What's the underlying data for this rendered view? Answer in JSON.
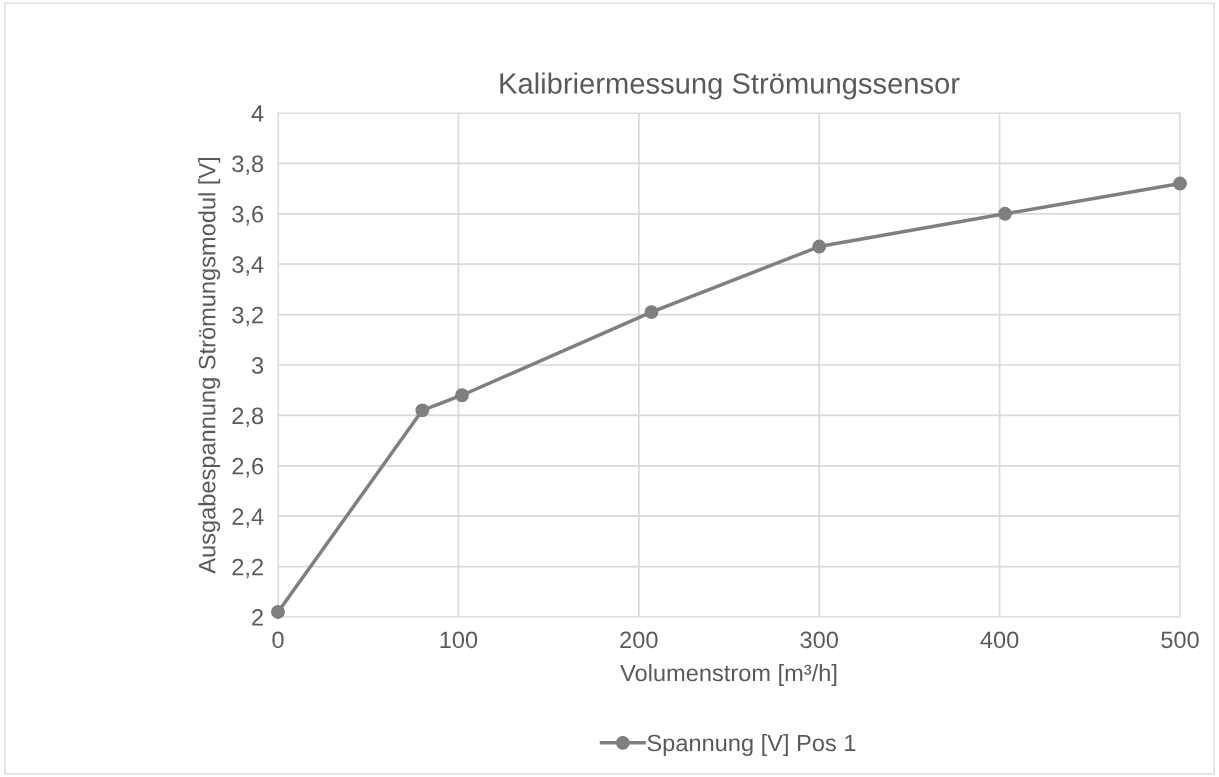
{
  "chart_data": {
    "type": "line",
    "title": "Kalibriermessung Strömungssensor",
    "xlabel": "Volumenstrom [m³/h]",
    "ylabel": "Ausgabespannung Strömungsmodul [V]",
    "x": [
      0,
      80,
      102,
      207,
      300,
      403,
      500
    ],
    "series": [
      {
        "name": "Spannung [V] Pos 1",
        "color": "#7f7f7f",
        "values": [
          2.02,
          2.82,
          2.88,
          3.21,
          3.47,
          3.6,
          3.72
        ]
      }
    ],
    "xlim": [
      0,
      500
    ],
    "xticks": [
      0,
      100,
      200,
      300,
      400,
      500
    ],
    "ylim": [
      2,
      4
    ],
    "yticks": [
      {
        "value": 2,
        "label": "2"
      },
      {
        "value": 2.2,
        "label": "2,2"
      },
      {
        "value": 2.4,
        "label": "2,4"
      },
      {
        "value": 2.6,
        "label": "2,6"
      },
      {
        "value": 2.8,
        "label": "2,8"
      },
      {
        "value": 3,
        "label": "3"
      },
      {
        "value": 3.2,
        "label": "3,2"
      },
      {
        "value": 3.4,
        "label": "3,4"
      },
      {
        "value": 3.6,
        "label": "3,6"
      },
      {
        "value": 3.8,
        "label": "3,8"
      },
      {
        "value": 4,
        "label": "4"
      }
    ],
    "grid": true,
    "legend": "bottom",
    "marker": "circle",
    "line_style": "solid"
  }
}
